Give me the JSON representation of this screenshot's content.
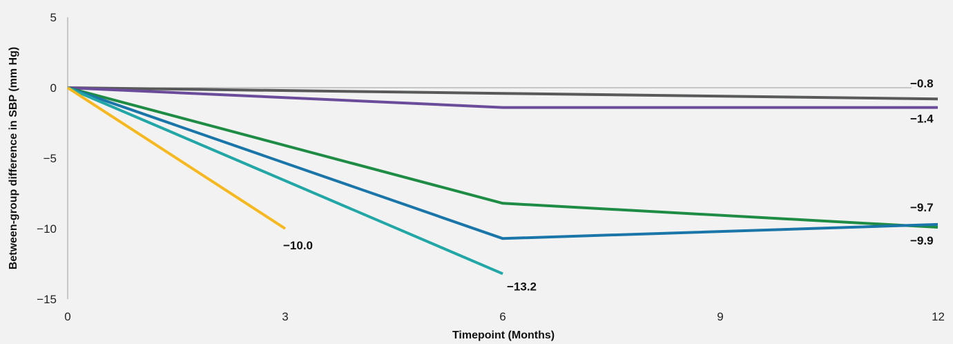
{
  "chart_data": {
    "type": "line",
    "title": "",
    "xlabel": "Timepoint (Months)",
    "ylabel": "Between-group difference in SBP (mm Hg)",
    "xlim": [
      0,
      12
    ],
    "ylim": [
      -15,
      5
    ],
    "x_ticks": [
      0,
      3,
      6,
      9,
      12
    ],
    "y_ticks": [
      5,
      0,
      -5,
      -10,
      -15
    ],
    "x_tick_labels": [
      "0",
      "3",
      "6",
      "9",
      "12"
    ],
    "y_tick_labels": [
      "5",
      "0",
      "−5",
      "−10",
      "−15"
    ],
    "grid": false,
    "legend": "none",
    "series": [
      {
        "color": "#58595b",
        "points": [
          [
            0,
            0
          ],
          [
            6,
            -0.4
          ],
          [
            12,
            -0.8
          ]
        ],
        "end_label": "−0.8"
      },
      {
        "color": "#6b4c9a",
        "points": [
          [
            0,
            0
          ],
          [
            6,
            -1.4
          ],
          [
            12,
            -1.4
          ]
        ],
        "end_label": "−1.4"
      },
      {
        "color": "#1e8c45",
        "points": [
          [
            0,
            0
          ],
          [
            6,
            -8.2
          ],
          [
            12,
            -9.9
          ]
        ],
        "end_label": "−9.9"
      },
      {
        "color": "#1a75a8",
        "points": [
          [
            0,
            0
          ],
          [
            6,
            -10.7
          ],
          [
            12,
            -9.7
          ]
        ],
        "end_label": "−9.7"
      },
      {
        "color": "#22a6a6",
        "points": [
          [
            0,
            0
          ],
          [
            6,
            -13.2
          ]
        ],
        "end_label": "−13.2"
      },
      {
        "color": "#f5b820",
        "points": [
          [
            0,
            0
          ],
          [
            3,
            -10.0
          ]
        ],
        "end_label": "−10.0"
      }
    ]
  }
}
